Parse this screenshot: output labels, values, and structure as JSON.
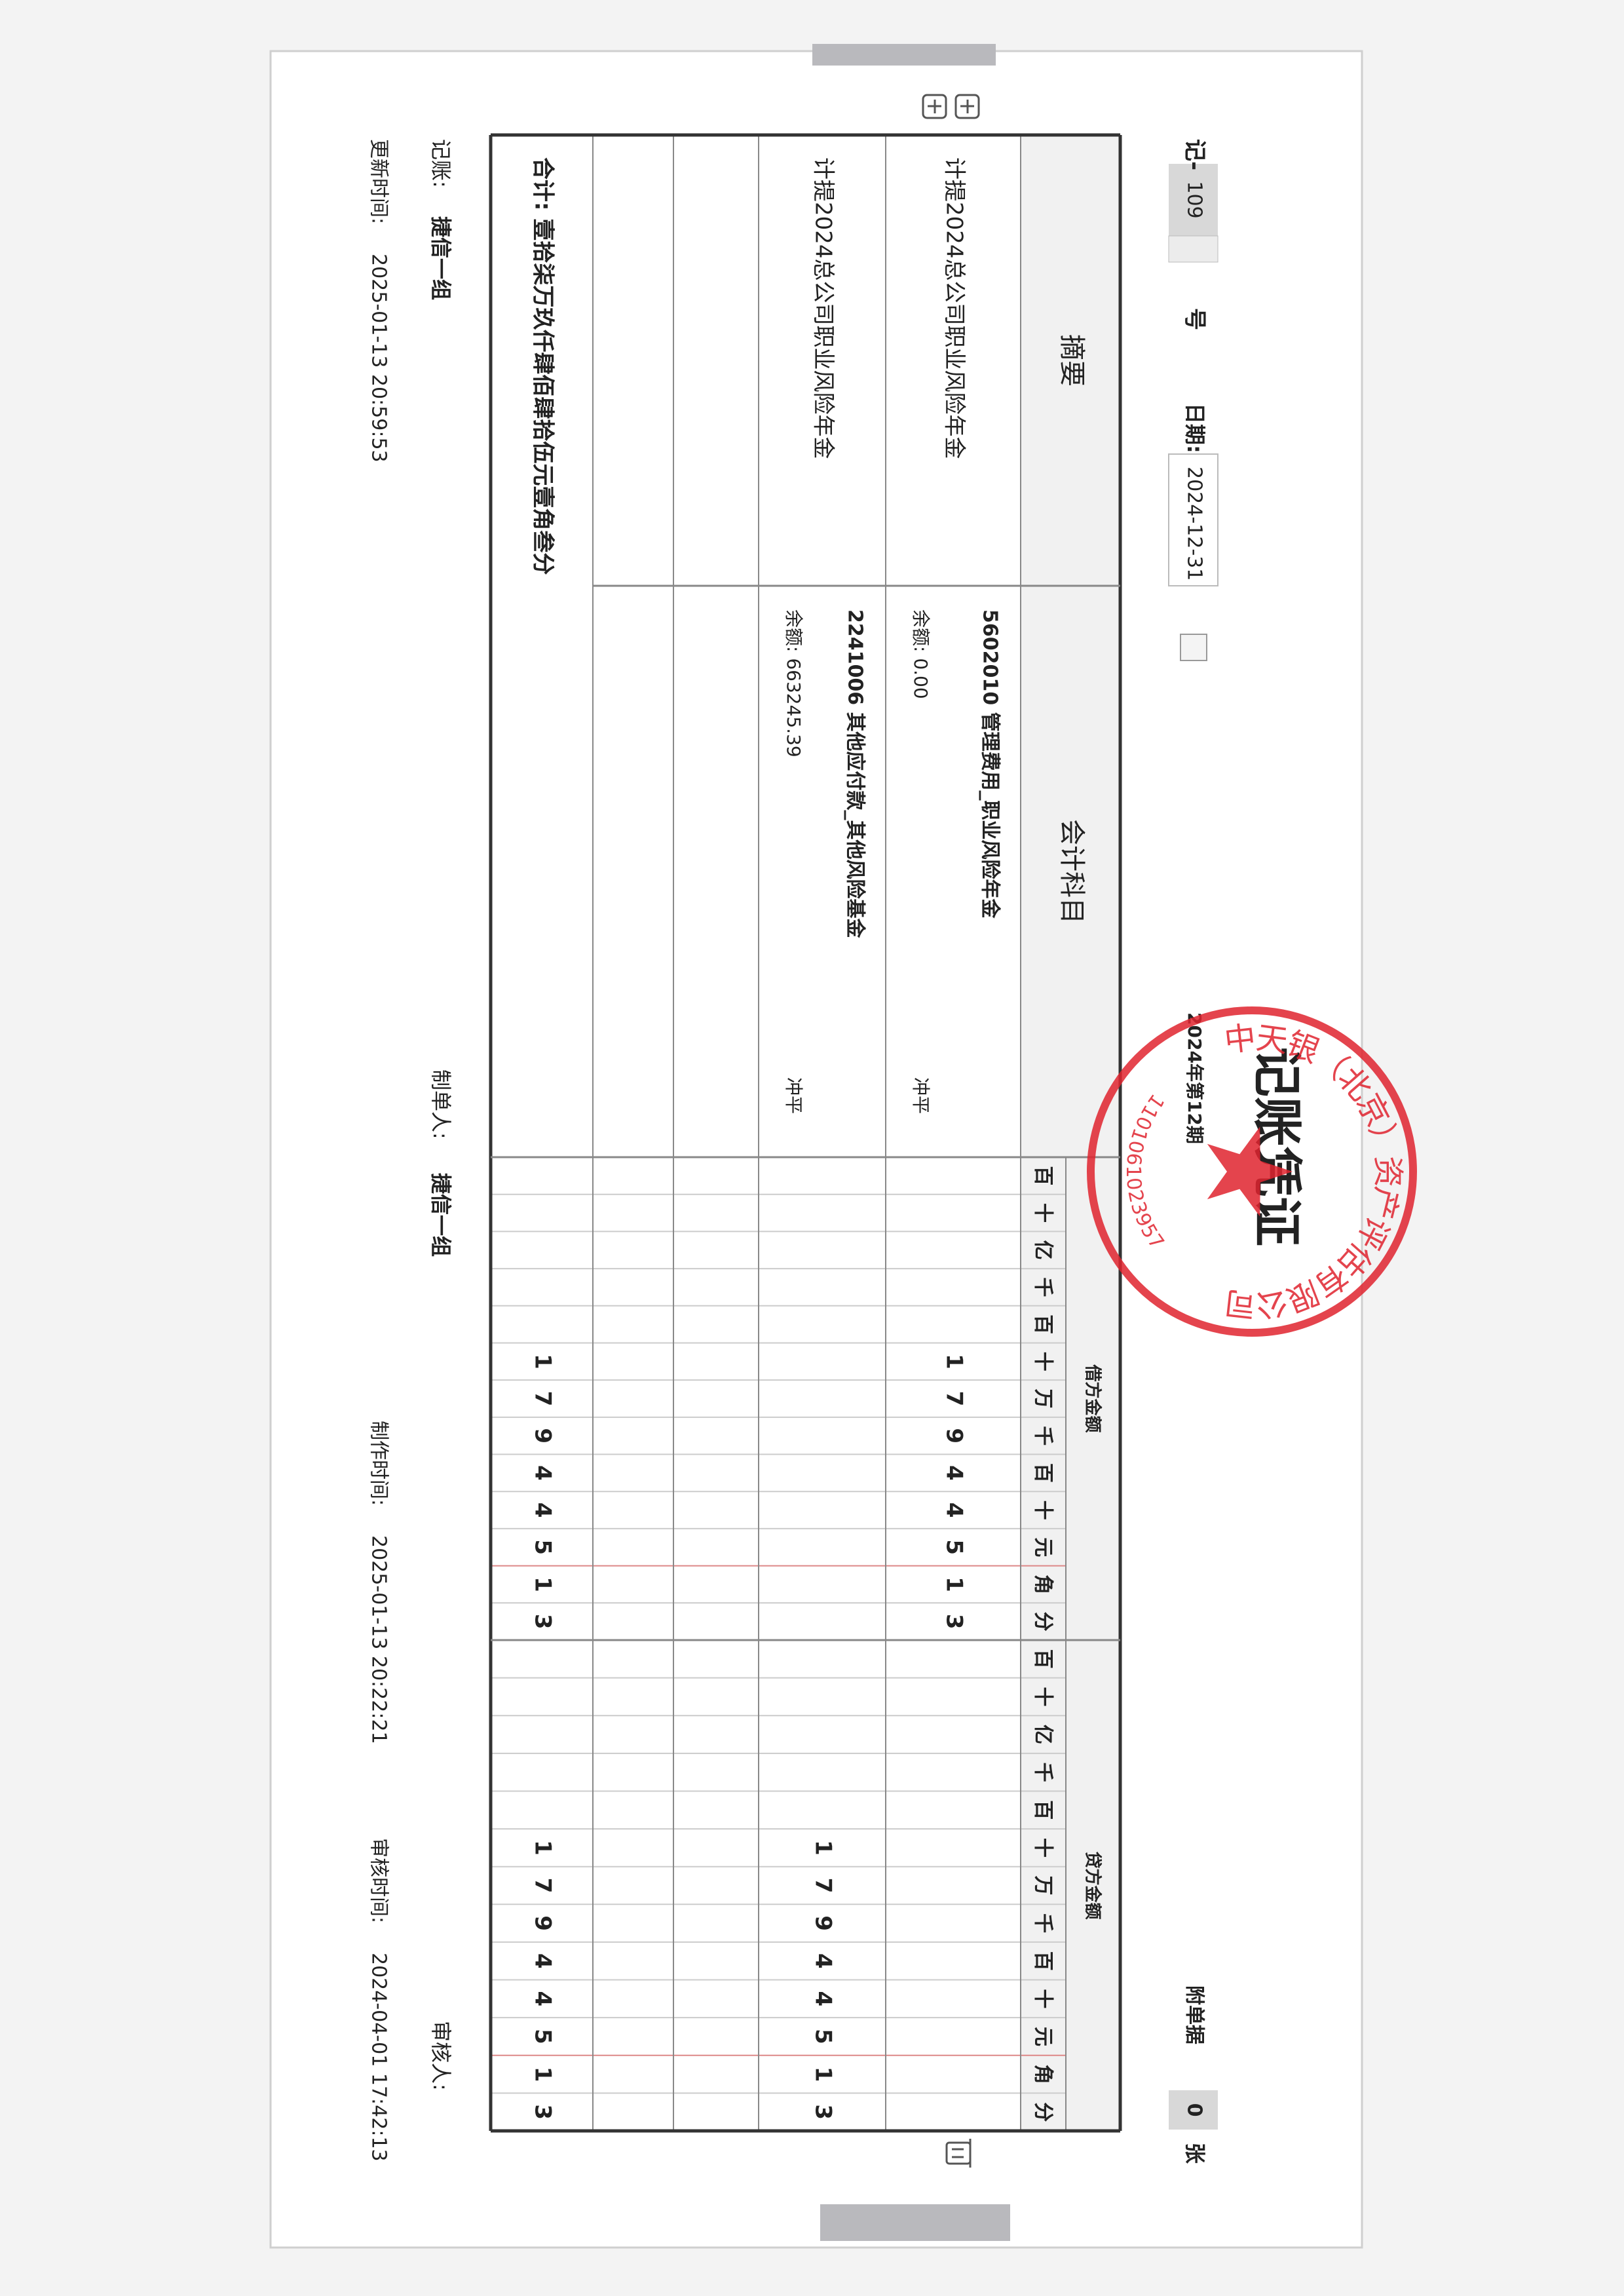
{
  "voucher": {
    "prefix": "记-",
    "number": "109",
    "number_suffix": "号",
    "date_label": "日期:",
    "date": "2024-12-31",
    "attachments_label": "附单据",
    "attachments": "0",
    "attachments_unit": "张",
    "title": "记账凭证",
    "period": "2024年第12期"
  },
  "table": {
    "headers": {
      "summary": "摘要",
      "account": "会计科目",
      "debit": "借方金额",
      "credit": "贷方金额"
    },
    "digit_units": [
      "百",
      "十",
      "亿",
      "千",
      "百",
      "十",
      "万",
      "千",
      "百",
      "十",
      "元",
      "角",
      "分"
    ],
    "rows": [
      {
        "summary": "计提2024总公司职业风险年金",
        "account": "5602010 管理费用_职业风险年金",
        "balance": "余额: 0.00",
        "status": "冲平",
        "debit": [
          "1",
          "7",
          "9",
          "4",
          "4",
          "5",
          "1",
          "3"
        ]
      },
      {
        "summary": "计提2024总公司职业风险年金",
        "account": "2241006 其他应付款_其他风险基金",
        "balance": "余额: 663245.39",
        "status": "冲平",
        "credit": [
          "1",
          "7",
          "9",
          "4",
          "4",
          "5",
          "1",
          "3"
        ]
      }
    ],
    "total": {
      "text": "合计: 壹拾柒万玖仟肆佰肆拾伍元壹角叁分",
      "debit": [
        "1",
        "7",
        "9",
        "4",
        "4",
        "5",
        "1",
        "3"
      ],
      "credit": [
        "1",
        "7",
        "9",
        "4",
        "4",
        "5",
        "1",
        "3"
      ]
    }
  },
  "footer": {
    "bookkeeper_label": "记账:",
    "bookkeeper": "捷信一组",
    "maker_label": "制单人:",
    "maker": "捷信一组",
    "reviewer_label": "审核人:",
    "updated_label": "更新时间:",
    "updated": "2025-01-13 20:59:53",
    "created_label": "制作时间:",
    "created": "2025-01-13 20:22:21",
    "reviewed_label": "审核时间:",
    "reviewed": "2024-04-01 17:42:13"
  },
  "stamp": {
    "company": "中天银（北京）资产评估有限公司",
    "code": "1101061023957"
  }
}
